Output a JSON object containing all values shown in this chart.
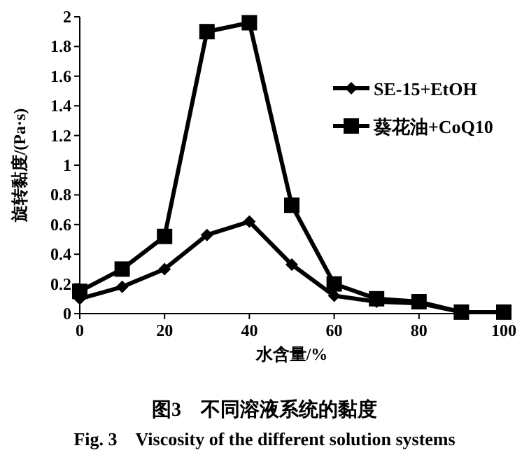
{
  "chart_data": {
    "type": "line",
    "xlabel": "水含量/%",
    "ylabel": "旋转黏度/(Pa·s)",
    "annotations": [
      "图3　不同溶液系统的黏度",
      "Fig. 3　Viscosity of the different solution systems"
    ],
    "x": [
      0,
      10,
      20,
      30,
      40,
      50,
      60,
      70,
      80,
      90,
      100
    ],
    "series": [
      {
        "name": "SE-15+EtOH",
        "color": "#000000",
        "marker": "diamond",
        "values": [
          0.1,
          0.18,
          0.3,
          0.53,
          0.62,
          0.33,
          0.12,
          0.08,
          0.07,
          0.01,
          0.01
        ]
      },
      {
        "name": "葵花油+CoQ10",
        "color": "#000000",
        "marker": "square",
        "values": [
          0.15,
          0.3,
          0.52,
          1.9,
          1.96,
          0.73,
          0.2,
          0.1,
          0.08,
          0.01,
          0.01
        ]
      }
    ],
    "xlim": [
      0,
      100
    ],
    "xticks": [
      0,
      20,
      40,
      60,
      80,
      100
    ],
    "ylim": [
      0,
      2
    ],
    "yticks": [
      0,
      0.2,
      0.4,
      0.6,
      0.8,
      1,
      1.2,
      1.4,
      1.6,
      1.8,
      2
    ],
    "grid": false,
    "legend": "top right",
    "line_style": "solid"
  }
}
